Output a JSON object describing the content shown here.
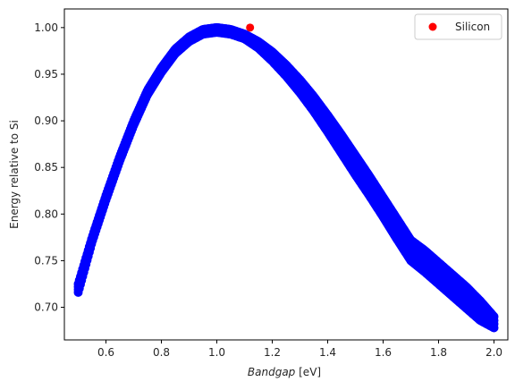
{
  "chart_data": {
    "type": "scatter",
    "xlabel_italic": "Bandgap",
    "xlabel_unit": "[eV]",
    "ylabel": "Energy relative to Si",
    "xlim": [
      0.45,
      2.05
    ],
    "ylim": [
      0.665,
      1.02
    ],
    "xticks": [
      0.6,
      0.8,
      1.0,
      1.2,
      1.4,
      1.6,
      1.8,
      2.0
    ],
    "xtick_labels": [
      "0.6",
      "0.8",
      "1.0",
      "1.2",
      "1.4",
      "1.6",
      "1.8",
      "2.0"
    ],
    "yticks": [
      0.7,
      0.75,
      0.8,
      0.85,
      0.9,
      0.95,
      1.0
    ],
    "ytick_labels": [
      "0.70",
      "0.75",
      "0.80",
      "0.85",
      "0.90",
      "0.95",
      "1.00"
    ],
    "legend_position": "top-right",
    "series": [
      {
        "marker_color": "#0000ff",
        "x": [
          0.5,
          0.55,
          0.6,
          0.65,
          0.7,
          0.75,
          0.8,
          0.85,
          0.9,
          0.95,
          1.0,
          1.05,
          1.1,
          1.15,
          1.2,
          1.25,
          1.3,
          1.35,
          1.4,
          1.45,
          1.5,
          1.55,
          1.6,
          1.65,
          1.7,
          1.75,
          1.8,
          1.85,
          1.9,
          1.95,
          2.0
        ],
        "y_upper": [
          0.725,
          0.775,
          0.82,
          0.862,
          0.9,
          0.933,
          0.957,
          0.977,
          0.99,
          0.998,
          1.0,
          0.998,
          0.993,
          0.985,
          0.974,
          0.96,
          0.944,
          0.926,
          0.906,
          0.885,
          0.863,
          0.841,
          0.818,
          0.795,
          0.772,
          0.761,
          0.748,
          0.735,
          0.722,
          0.707,
          0.69
        ],
        "y_lower": [
          0.716,
          0.77,
          0.815,
          0.857,
          0.895,
          0.928,
          0.952,
          0.972,
          0.985,
          0.993,
          0.995,
          0.993,
          0.988,
          0.978,
          0.964,
          0.948,
          0.93,
          0.91,
          0.888,
          0.865,
          0.842,
          0.82,
          0.797,
          0.773,
          0.75,
          0.738,
          0.725,
          0.712,
          0.699,
          0.686,
          0.678
        ]
      },
      {
        "name": "Silicon",
        "marker_color": "#ff0000",
        "x": [
          1.12
        ],
        "y": [
          1.0
        ]
      }
    ]
  }
}
